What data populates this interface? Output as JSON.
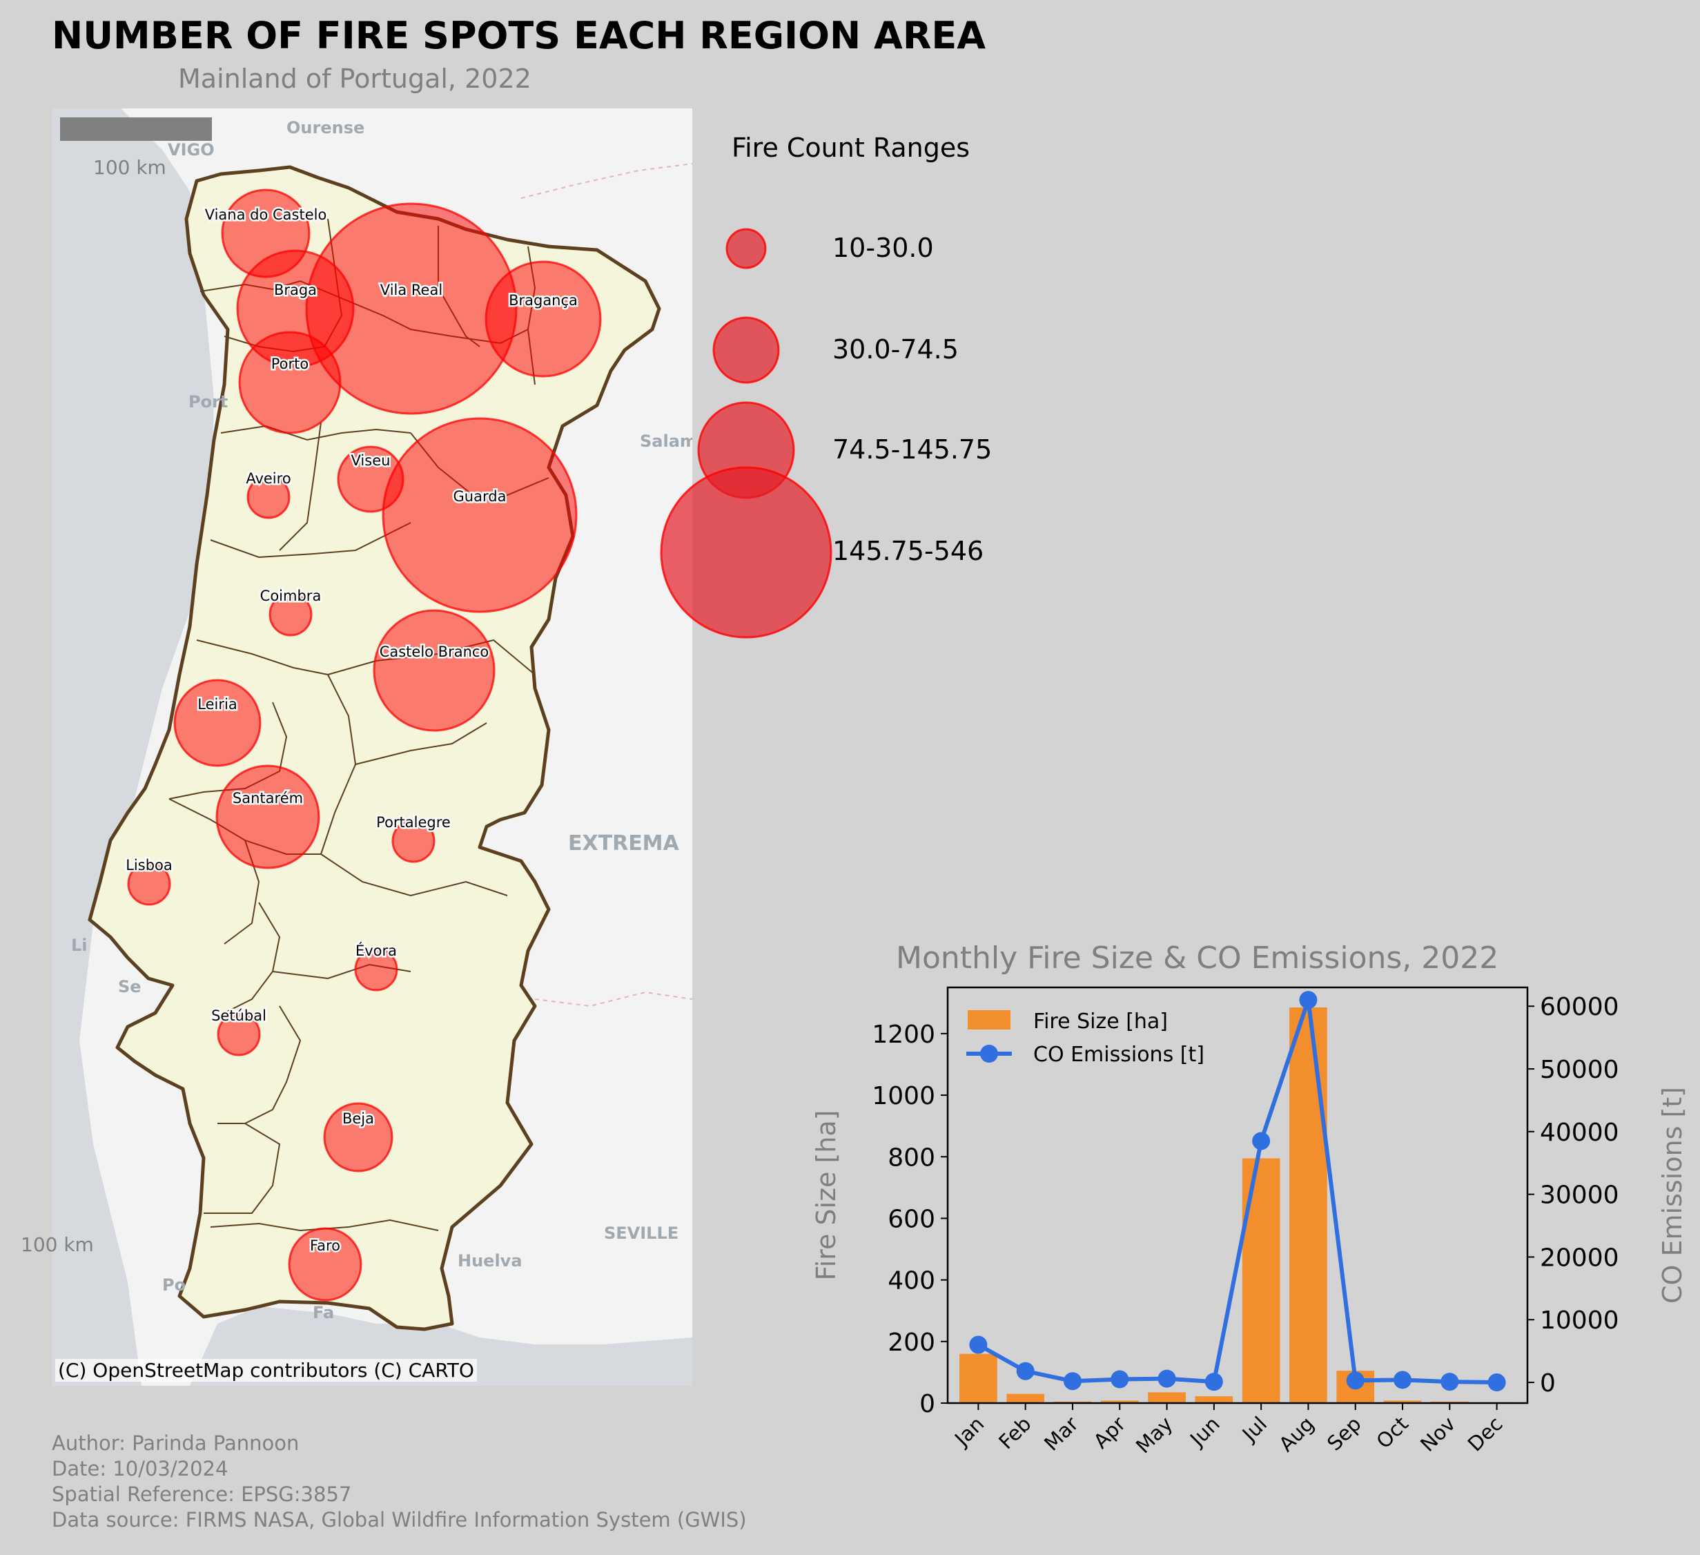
{
  "header": {
    "title": "NUMBER OF FIRE SPOTS EACH REGION AREA",
    "subtitle": "Mainland of Portugal, 2022"
  },
  "map": {
    "scale_bar_label_top": "100 km",
    "scale_bar_label_left": "100 km",
    "attribution": "(C) OpenStreetMap contributors (C) CARTO",
    "colors": {
      "land": "#f5f5dc",
      "border": "#5c4020",
      "sea": "#d6dadf",
      "basemap": "#f2f3f2",
      "circle": "#ff0000"
    },
    "basemap_labels": [
      "Ourense",
      "VIGO",
      "Salam",
      "Port",
      "EXTREMA",
      "SEVILLE",
      "Huelva",
      "Li",
      "Se",
      "Po",
      "Fa"
    ],
    "regions": [
      {
        "name": "Viana do Castelo",
        "size_range": "30.0-74.5"
      },
      {
        "name": "Braga",
        "size_range": "74.5-145.75"
      },
      {
        "name": "Vila Real",
        "size_range": "145.75-546"
      },
      {
        "name": "Bragança",
        "size_range": "74.5-145.75"
      },
      {
        "name": "Porto",
        "size_range": "74.5-145.75"
      },
      {
        "name": "Aveiro",
        "size_range": "10-30.0"
      },
      {
        "name": "Viseu",
        "size_range": "30.0-74.5"
      },
      {
        "name": "Guarda",
        "size_range": "145.75-546"
      },
      {
        "name": "Coimbra",
        "size_range": "10-30.0"
      },
      {
        "name": "Castelo Branco",
        "size_range": "74.5-145.75"
      },
      {
        "name": "Leiria",
        "size_range": "30.0-74.5"
      },
      {
        "name": "Santarém",
        "size_range": "74.5-145.75"
      },
      {
        "name": "Portalegre",
        "size_range": "10-30.0"
      },
      {
        "name": "Lisboa",
        "size_range": "10-30.0"
      },
      {
        "name": "Évora",
        "size_range": "10-30.0"
      },
      {
        "name": "Setúbal",
        "size_range": "10-30.0"
      },
      {
        "name": "Beja",
        "size_range": "30.0-74.5"
      },
      {
        "name": "Faro",
        "size_range": "30.0-74.5"
      }
    ]
  },
  "legend": {
    "title": "Fire Count Ranges",
    "items": [
      "10-30.0",
      "30.0-74.5",
      "74.5-145.75",
      "145.75-546"
    ]
  },
  "credits": {
    "author": "Author: Parinda Pannoon",
    "date": "Date: 10/03/2024",
    "srs": "Spatial Reference: EPSG:3857",
    "source": "Data source: FIRMS NASA, Global Wildfire Information System (GWIS)"
  },
  "chart_data": {
    "type": "bar",
    "title": "Monthly Fire Size & CO Emissions, 2022",
    "categories": [
      "Jan",
      "Feb",
      "Mar",
      "Apr",
      "May",
      "Jun",
      "Jul",
      "Aug",
      "Sep",
      "Oct",
      "Nov",
      "Dec"
    ],
    "series": [
      {
        "name": "Fire Size [ha]",
        "type": "bar",
        "axis": "left",
        "color": "#f28e2b",
        "values": [
          160,
          30,
          5,
          8,
          35,
          22,
          795,
          1285,
          105,
          8,
          5,
          3
        ]
      },
      {
        "name": "CO Emissions [t]",
        "type": "line",
        "axis": "right",
        "color": "#2f6fe0",
        "values": [
          6000,
          1800,
          200,
          500,
          600,
          100,
          38500,
          61000,
          300,
          400,
          100,
          0
        ]
      }
    ],
    "ylabel": "Fire Size [ha]",
    "ylabel_right": "CO Emissions [t]",
    "ylim": [
      0,
      1350
    ],
    "ylim_right": [
      -3300,
      63000
    ],
    "yticks": [
      0,
      200,
      400,
      600,
      800,
      1000,
      1200
    ],
    "yticks_right": [
      0,
      10000,
      20000,
      30000,
      40000,
      50000,
      60000
    ],
    "legend_position": "upper-left"
  }
}
